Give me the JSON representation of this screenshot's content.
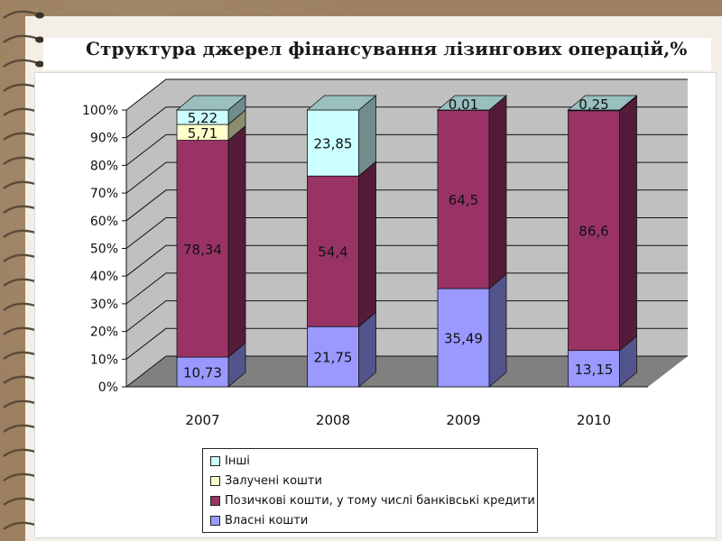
{
  "title": "Структура джерел фінансування лізингових операцій,%",
  "colors": {
    "own": "#9999ff",
    "loans": "#993366",
    "attracted": "#ffffcc",
    "other": "#ccffff",
    "floor": "#808080",
    "wall": "#c0c0c0"
  },
  "chart_data": {
    "type": "bar",
    "stacked": true,
    "percent_stacked": true,
    "three_d": true,
    "title": "Структура джерел фінансування лізингових операцій,%",
    "xlabel": "",
    "ylabel": "",
    "ylim": [
      0,
      100
    ],
    "y_ticks": [
      "0%",
      "10%",
      "20%",
      "30%",
      "40%",
      "50%",
      "60%",
      "70%",
      "80%",
      "90%",
      "100%"
    ],
    "categories": [
      "2007",
      "2008",
      "2009",
      "2010"
    ],
    "legend_position": "bottom",
    "grid": true,
    "series": [
      {
        "name": "Власні кошти",
        "values": [
          10.73,
          21.75,
          35.49,
          13.15
        ],
        "labels": [
          "10,73",
          "21,75",
          "35,49",
          "13,15"
        ]
      },
      {
        "name": "Позичкові кошти, у тому числі банківські кредити",
        "values": [
          78.34,
          54.4,
          64.5,
          86.6
        ],
        "labels": [
          "78,34",
          "54,4",
          "64,5",
          "86,6"
        ]
      },
      {
        "name": "Залучені кошти",
        "values": [
          5.71,
          0,
          0,
          0
        ],
        "labels": [
          "5,71",
          "",
          "",
          ""
        ]
      },
      {
        "name": "Інші",
        "values": [
          5.22,
          23.85,
          0.01,
          0.25
        ],
        "labels": [
          "5,22",
          "23,85",
          "0,01",
          "0,25"
        ]
      }
    ]
  }
}
